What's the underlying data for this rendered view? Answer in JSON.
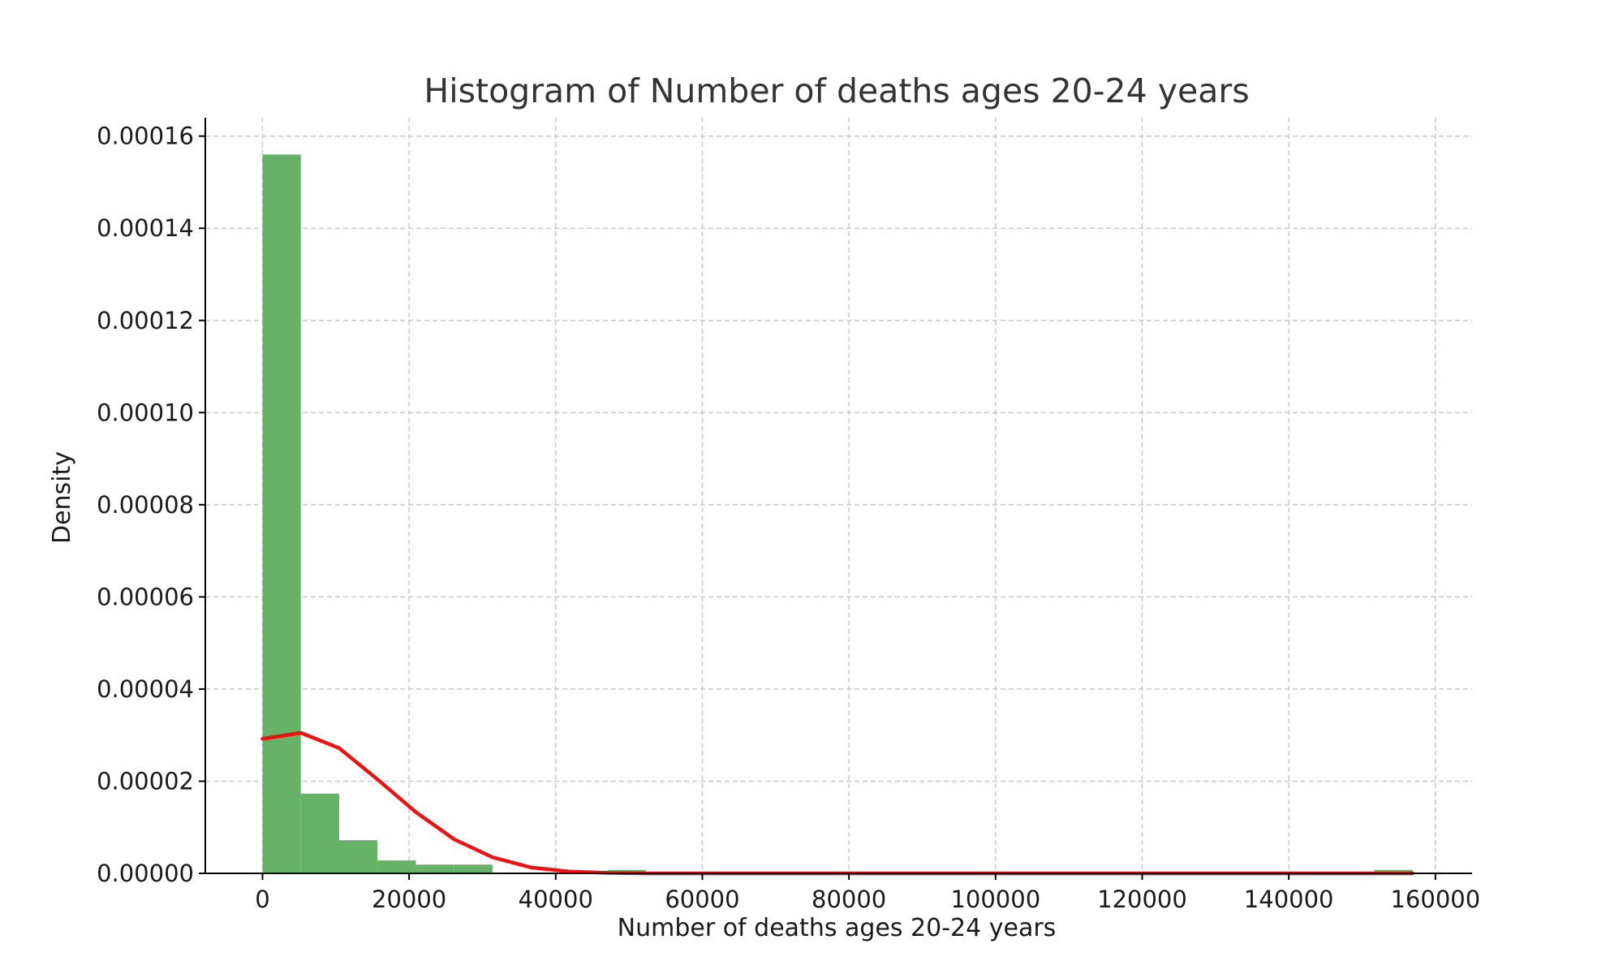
{
  "chart_data": {
    "type": "bar",
    "title": "Histogram of Number of deaths ages 20-24 years",
    "xlabel": "Number of deaths ages 20-24 years",
    "ylabel": "Density",
    "xlim": [
      -7800,
      165000
    ],
    "ylim": [
      0,
      0.000164
    ],
    "xticks": [
      0,
      20000,
      40000,
      60000,
      80000,
      100000,
      120000,
      140000,
      160000
    ],
    "xtick_labels": [
      "0",
      "20000",
      "40000",
      "60000",
      "80000",
      "100000",
      "120000",
      "140000",
      "160000"
    ],
    "yticks": [
      0,
      2e-05,
      4e-05,
      6e-05,
      8e-05,
      0.0001,
      0.00012,
      0.00014,
      0.00016
    ],
    "ytick_labels": [
      "0.00000",
      "0.00002",
      "0.00004",
      "0.00006",
      "0.00008",
      "0.00010",
      "0.00012",
      "0.00014",
      "0.00016"
    ],
    "grid": true,
    "bin_edges": [
      0,
      5230,
      10460,
      15690,
      20920,
      26150,
      31380,
      36610,
      41840,
      47070,
      52300,
      57530,
      62760,
      67990,
      73220,
      78450,
      83680,
      88910,
      94140,
      99370,
      104600,
      109830,
      115060,
      120290,
      125520,
      130750,
      135980,
      141210,
      146440,
      151670,
      156900
    ],
    "densities": [
      0.000156,
      1.73e-05,
      7.2e-06,
      2.8e-06,
      1.9e-06,
      1.9e-06,
      0,
      0,
      0,
      7.5e-07,
      0,
      0,
      0,
      0,
      0,
      0,
      0,
      0,
      0,
      0,
      0,
      0,
      0,
      0,
      0,
      0,
      0,
      0,
      0,
      7.5e-07
    ],
    "bar_color": "#66b266",
    "density_curve": {
      "color": "#ee1111",
      "x": [
        0,
        5230,
        10460,
        15690,
        20920,
        26150,
        31380,
        36610,
        41840,
        47070,
        52300,
        57530,
        62760,
        67990,
        73220,
        78450,
        83680,
        88910,
        94140,
        99370,
        104600,
        109830,
        115060,
        120290,
        125520,
        130750,
        135980,
        141210,
        146440,
        151670,
        156900
      ],
      "y": [
        2.92e-05,
        3.05e-05,
        2.72e-05,
        2.04e-05,
        1.33e-05,
        7.4e-06,
        3.5e-06,
        1.3e-06,
        4e-07,
        1e-07,
        0,
        0,
        0,
        0,
        0,
        0,
        0,
        0,
        0,
        0,
        0,
        0,
        0,
        0,
        0,
        0,
        0,
        0,
        0,
        0,
        0
      ]
    }
  }
}
